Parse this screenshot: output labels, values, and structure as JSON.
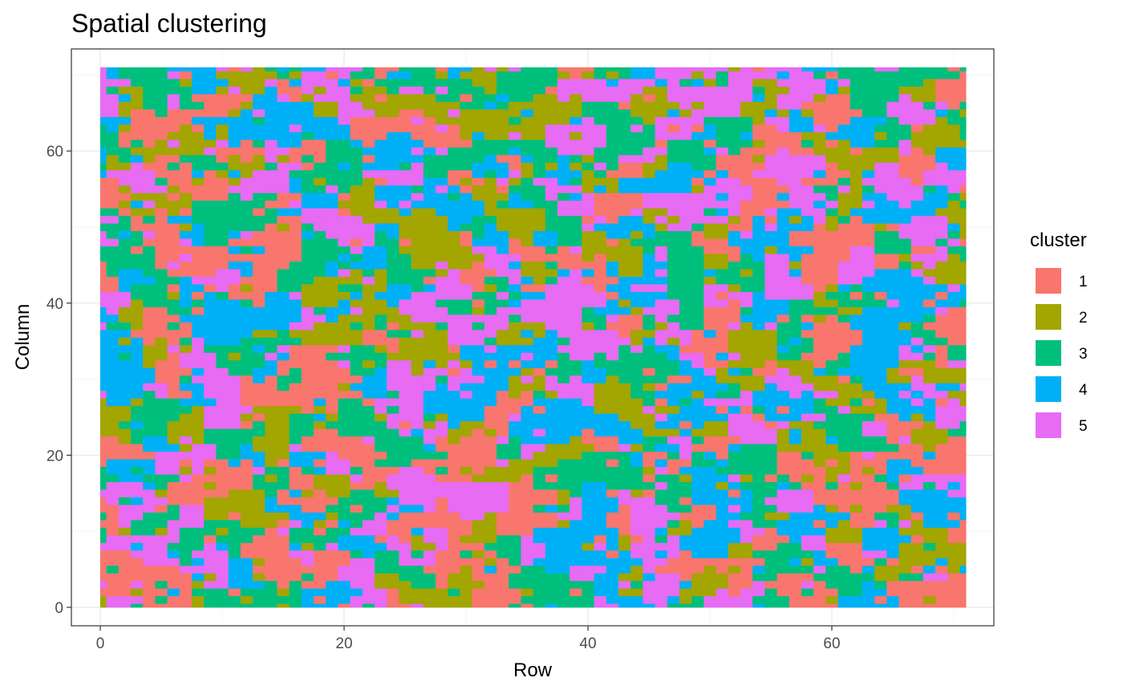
{
  "chart_data": {
    "type": "heatmap",
    "title": "Spatial clustering",
    "xlabel": "Row",
    "ylabel": "Column",
    "xlim": [
      0,
      71
    ],
    "ylim": [
      0,
      71
    ],
    "x_ticks": [
      0,
      20,
      40,
      60
    ],
    "y_ticks": [
      0,
      20,
      40,
      60
    ],
    "grid": true,
    "legend": {
      "title": "cluster",
      "position": "right",
      "entries": [
        "1",
        "2",
        "3",
        "4",
        "5"
      ]
    },
    "colors": {
      "1": "#F8766D",
      "2": "#A3A500",
      "3": "#00BF7D",
      "4": "#00B0F6",
      "5": "#E76BF3"
    },
    "grid_size": 72,
    "seed": 20240517
  }
}
